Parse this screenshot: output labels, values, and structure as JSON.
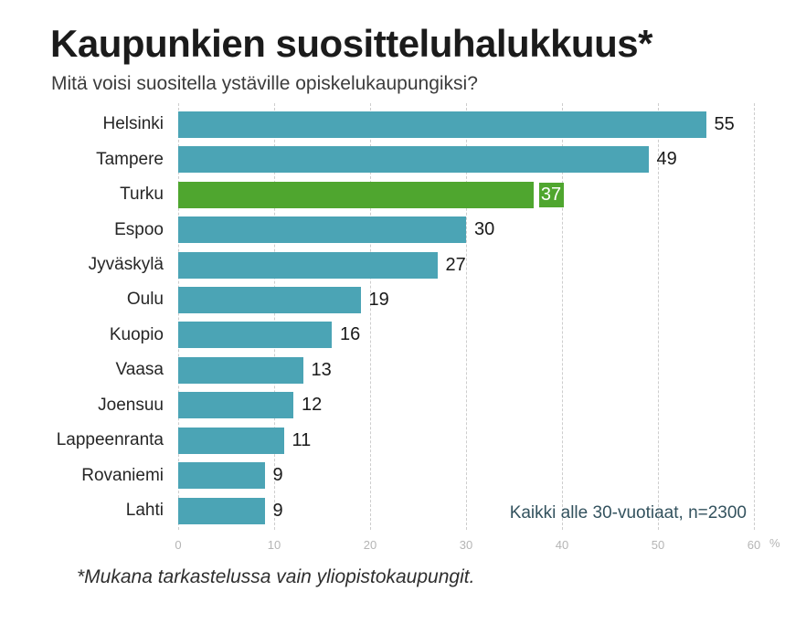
{
  "header": {
    "title": "Kaupunkien suositteluhalukkuus*",
    "subtitle": "Mitä voisi suositella ystäville opiskelukaupungiksi?"
  },
  "chart_data": {
    "type": "bar",
    "orientation": "horizontal",
    "categories": [
      "Helsinki",
      "Tampere",
      "Turku",
      "Espoo",
      "Jyväskylä",
      "Oulu",
      "Kuopio",
      "Vaasa",
      "Joensuu",
      "Lappeenranta",
      "Rovaniemi",
      "Lahti"
    ],
    "values": [
      55,
      49,
      37,
      30,
      27,
      19,
      16,
      13,
      12,
      11,
      9,
      9
    ],
    "highlight_index": 2,
    "highlight_category": "Turku",
    "xlim": [
      0,
      60
    ],
    "x_ticks": [
      0,
      10,
      20,
      30,
      40,
      50,
      60
    ],
    "x_unit": "%",
    "grid": "dashed-vertical",
    "legend": "none",
    "bar_color": "#4BA4B5",
    "highlight_color": "#4FA62F",
    "sample_note": "Kaikki alle 30-vuotiaat, n=2300"
  },
  "footnote": "*Mukana tarkastelussa vain yliopistokaupungit."
}
